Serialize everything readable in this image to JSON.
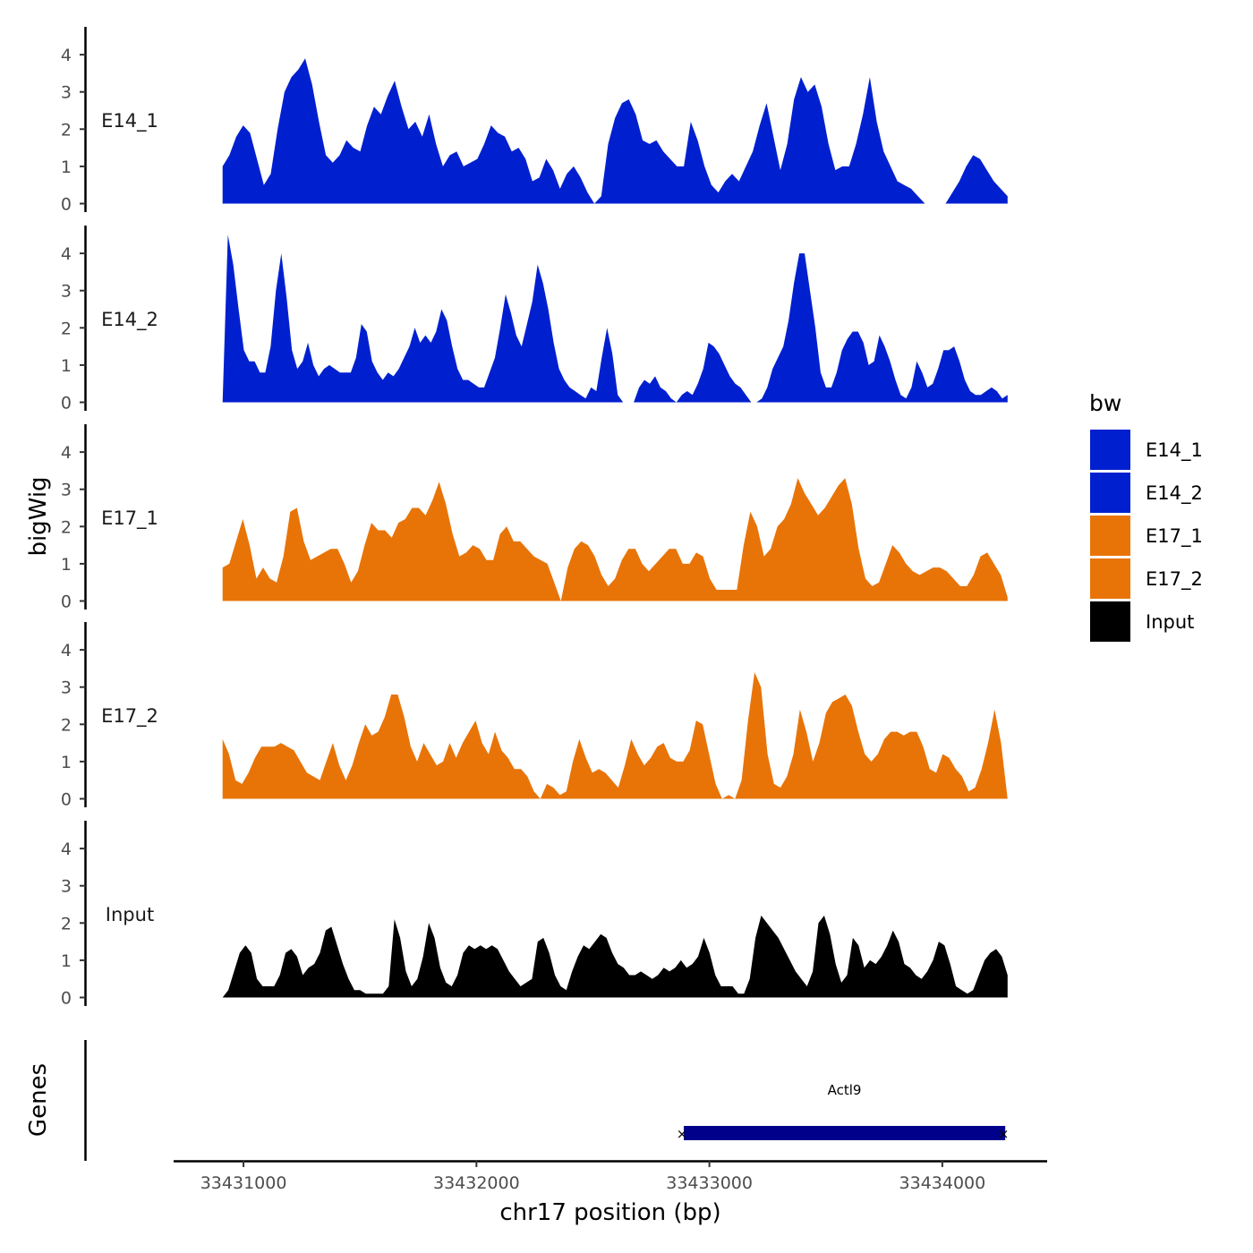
{
  "chart_data": {
    "type": "area",
    "title": "",
    "ylabel": "bigWig",
    "xlabel": "chr17 position (bp)",
    "genes_label": "Genes",
    "x_range": [
      33430700,
      33434450
    ],
    "plot_start": 33430910,
    "plot_end": 33434280,
    "ylim": [
      0,
      4.7
    ],
    "y_ticks": [
      "0",
      "1",
      "2",
      "3",
      "4"
    ],
    "x_ticks": [
      {
        "value": 33431000,
        "label": "33431000"
      },
      {
        "value": 33432000,
        "label": "33432000"
      },
      {
        "value": 33433000,
        "label": "33433000"
      },
      {
        "value": 33434000,
        "label": "33434000"
      }
    ],
    "legend": {
      "title": "bw",
      "items": [
        {
          "label": "E14_1",
          "color": "#0020d0"
        },
        {
          "label": "E14_2",
          "color": "#0020d0"
        },
        {
          "label": "E17_1",
          "color": "#e87408"
        },
        {
          "label": "E17_2",
          "color": "#e87408"
        },
        {
          "label": "Input",
          "color": "#000000"
        }
      ]
    },
    "series": [
      {
        "name": "E14_1",
        "color": "#0020d0",
        "values": [
          1.0,
          1.3,
          1.8,
          2.1,
          1.9,
          1.2,
          0.5,
          0.8,
          2.0,
          3.0,
          3.4,
          3.6,
          3.9,
          3.2,
          2.2,
          1.3,
          1.1,
          1.3,
          1.7,
          1.5,
          1.4,
          2.1,
          2.6,
          2.4,
          2.9,
          3.3,
          2.6,
          2.0,
          2.2,
          1.8,
          2.4,
          1.6,
          1.0,
          1.3,
          1.4,
          1.0,
          1.1,
          1.2,
          1.6,
          2.1,
          1.9,
          1.8,
          1.4,
          1.5,
          1.2,
          0.6,
          0.7,
          1.2,
          0.9,
          0.4,
          0.8,
          1.0,
          0.7,
          0.3,
          0.0,
          0.2,
          1.6,
          2.3,
          2.7,
          2.8,
          2.4,
          1.7,
          1.6,
          1.7,
          1.4,
          1.2,
          1.0,
          1.0,
          2.2,
          1.7,
          1.0,
          0.5,
          0.3,
          0.6,
          0.8,
          0.6,
          1.0,
          1.4,
          2.1,
          2.7,
          1.8,
          0.9,
          1.6,
          2.8,
          3.4,
          3.0,
          3.2,
          2.6,
          1.6,
          0.9,
          1.0,
          1.0,
          1.6,
          2.4,
          3.4,
          2.2,
          1.4,
          1.0,
          0.6,
          0.5,
          0.4,
          0.2,
          0.0,
          0.0,
          0.0,
          0.0,
          0.3,
          0.6,
          1.0,
          1.3,
          1.2,
          0.9,
          0.6,
          0.4,
          0.2
        ]
      },
      {
        "name": "E14_2",
        "color": "#0020d0",
        "values": [
          0.0,
          4.5,
          3.7,
          2.5,
          1.4,
          1.1,
          1.1,
          0.8,
          0.8,
          1.5,
          3.0,
          4.0,
          2.8,
          1.4,
          0.9,
          1.1,
          1.6,
          1.0,
          0.7,
          0.9,
          1.0,
          0.9,
          0.8,
          0.8,
          0.8,
          1.2,
          2.1,
          1.9,
          1.1,
          0.8,
          0.6,
          0.8,
          0.7,
          0.9,
          1.2,
          1.5,
          2.0,
          1.6,
          1.8,
          1.6,
          1.9,
          2.5,
          2.2,
          1.5,
          0.9,
          0.6,
          0.6,
          0.5,
          0.4,
          0.4,
          0.8,
          1.2,
          2.0,
          2.9,
          2.4,
          1.8,
          1.5,
          2.1,
          2.7,
          3.7,
          3.2,
          2.5,
          1.6,
          0.9,
          0.6,
          0.4,
          0.3,
          0.2,
          0.1,
          0.4,
          0.3,
          1.2,
          2.0,
          1.3,
          0.2,
          0.0,
          0.0,
          0.0,
          0.4,
          0.6,
          0.5,
          0.7,
          0.4,
          0.3,
          0.1,
          0.0,
          0.2,
          0.3,
          0.2,
          0.5,
          0.9,
          1.6,
          1.5,
          1.3,
          1.0,
          0.7,
          0.5,
          0.4,
          0.2,
          0.0,
          0.0,
          0.1,
          0.4,
          0.9,
          1.2,
          1.5,
          2.2,
          3.2,
          4.0,
          4.0,
          3.0,
          2.0,
          0.8,
          0.4,
          0.4,
          0.8,
          1.4,
          1.7,
          1.9,
          1.9,
          1.6,
          1.0,
          1.1,
          1.8,
          1.5,
          1.1,
          0.6,
          0.2,
          0.1,
          0.4,
          1.1,
          0.8,
          0.4,
          0.5,
          0.9,
          1.4,
          1.4,
          1.5,
          1.1,
          0.6,
          0.3,
          0.2,
          0.2,
          0.3,
          0.4,
          0.3,
          0.1,
          0.2
        ]
      },
      {
        "name": "E17_1",
        "color": "#e87408",
        "values": [
          0.9,
          1.0,
          1.6,
          2.2,
          1.5,
          0.6,
          0.9,
          0.6,
          0.5,
          1.2,
          2.4,
          2.5,
          1.6,
          1.1,
          1.2,
          1.3,
          1.4,
          1.4,
          1.0,
          0.5,
          0.8,
          1.5,
          2.1,
          1.9,
          1.9,
          1.7,
          2.1,
          2.2,
          2.5,
          2.5,
          2.3,
          2.7,
          3.2,
          2.6,
          1.8,
          1.2,
          1.3,
          1.5,
          1.4,
          1.1,
          1.1,
          1.8,
          2.0,
          1.6,
          1.6,
          1.4,
          1.2,
          1.1,
          1.0,
          0.5,
          0.0,
          0.9,
          1.4,
          1.6,
          1.5,
          1.2,
          0.7,
          0.4,
          0.6,
          1.1,
          1.4,
          1.4,
          1.0,
          0.8,
          1.0,
          1.2,
          1.4,
          1.4,
          1.0,
          1.0,
          1.3,
          1.2,
          0.6,
          0.3,
          0.3,
          0.3,
          0.3,
          1.5,
          2.4,
          2.0,
          1.2,
          1.4,
          2.0,
          2.2,
          2.6,
          3.3,
          2.9,
          2.6,
          2.3,
          2.5,
          2.8,
          3.1,
          3.3,
          2.6,
          1.4,
          0.6,
          0.4,
          0.5,
          1.0,
          1.5,
          1.3,
          1.0,
          0.8,
          0.7,
          0.8,
          0.9,
          0.9,
          0.8,
          0.6,
          0.4,
          0.4,
          0.7,
          1.2,
          1.3,
          1.0,
          0.7,
          0.1
        ]
      },
      {
        "name": "E17_2",
        "color": "#e87408",
        "values": [
          1.6,
          1.2,
          0.5,
          0.4,
          0.7,
          1.1,
          1.4,
          1.4,
          1.4,
          1.5,
          1.4,
          1.3,
          1.0,
          0.7,
          0.6,
          0.5,
          1.0,
          1.5,
          0.9,
          0.5,
          0.9,
          1.5,
          2.0,
          1.7,
          1.8,
          2.2,
          2.8,
          2.8,
          2.2,
          1.4,
          1.0,
          1.5,
          1.2,
          0.9,
          1.0,
          1.5,
          1.1,
          1.5,
          1.8,
          2.1,
          1.5,
          1.2,
          1.8,
          1.3,
          1.1,
          0.8,
          0.8,
          0.6,
          0.2,
          0.0,
          0.4,
          0.3,
          0.1,
          0.2,
          1.0,
          1.6,
          1.1,
          0.7,
          0.8,
          0.7,
          0.5,
          0.3,
          0.9,
          1.6,
          1.2,
          0.9,
          1.1,
          1.4,
          1.5,
          1.1,
          1.0,
          1.0,
          1.3,
          2.1,
          2.0,
          1.2,
          0.4,
          0.0,
          0.1,
          0.0,
          0.5,
          2.1,
          3.4,
          3.0,
          1.2,
          0.4,
          0.3,
          0.6,
          1.2,
          2.4,
          1.8,
          1.0,
          1.5,
          2.3,
          2.6,
          2.7,
          2.8,
          2.5,
          1.8,
          1.2,
          1.0,
          1.2,
          1.6,
          1.8,
          1.8,
          1.7,
          1.8,
          1.8,
          1.4,
          0.8,
          0.7,
          1.2,
          1.1,
          0.8,
          0.6,
          0.2,
          0.3,
          0.8,
          1.5,
          2.4,
          1.5,
          0.0
        ]
      },
      {
        "name": "Input",
        "color": "#000000",
        "values": [
          0.0,
          0.2,
          0.7,
          1.2,
          1.4,
          1.2,
          0.5,
          0.3,
          0.3,
          0.3,
          0.6,
          1.2,
          1.3,
          1.1,
          0.6,
          0.8,
          0.9,
          1.2,
          1.8,
          1.9,
          1.4,
          0.9,
          0.5,
          0.2,
          0.2,
          0.1,
          0.1,
          0.1,
          0.1,
          0.3,
          2.1,
          1.6,
          0.7,
          0.3,
          0.5,
          1.1,
          2.0,
          1.6,
          0.8,
          0.4,
          0.3,
          0.6,
          1.2,
          1.4,
          1.3,
          1.4,
          1.3,
          1.4,
          1.3,
          1.0,
          0.7,
          0.5,
          0.3,
          0.4,
          0.5,
          1.5,
          1.6,
          1.2,
          0.6,
          0.3,
          0.2,
          0.7,
          1.1,
          1.4,
          1.3,
          1.5,
          1.7,
          1.6,
          1.2,
          0.9,
          0.8,
          0.6,
          0.6,
          0.7,
          0.6,
          0.5,
          0.6,
          0.8,
          0.7,
          0.8,
          1.0,
          0.8,
          0.9,
          1.1,
          1.6,
          1.2,
          0.6,
          0.3,
          0.3,
          0.3,
          0.1,
          0.1,
          0.5,
          1.6,
          2.2,
          2.0,
          1.8,
          1.6,
          1.3,
          1.0,
          0.7,
          0.5,
          0.3,
          0.7,
          2.0,
          2.2,
          1.7,
          0.9,
          0.4,
          0.6,
          1.6,
          1.4,
          0.8,
          1.0,
          0.9,
          1.1,
          1.4,
          1.8,
          1.5,
          0.9,
          0.8,
          0.6,
          0.5,
          0.7,
          1.0,
          1.5,
          1.4,
          0.9,
          0.3,
          0.2,
          0.1,
          0.2,
          0.6,
          1.0,
          1.2,
          1.3,
          1.1,
          0.6
        ]
      }
    ],
    "gene": {
      "name": "Actl9",
      "start": 33432890,
      "end": 33434270,
      "strand_marker": "×",
      "color": "#00008b"
    }
  }
}
